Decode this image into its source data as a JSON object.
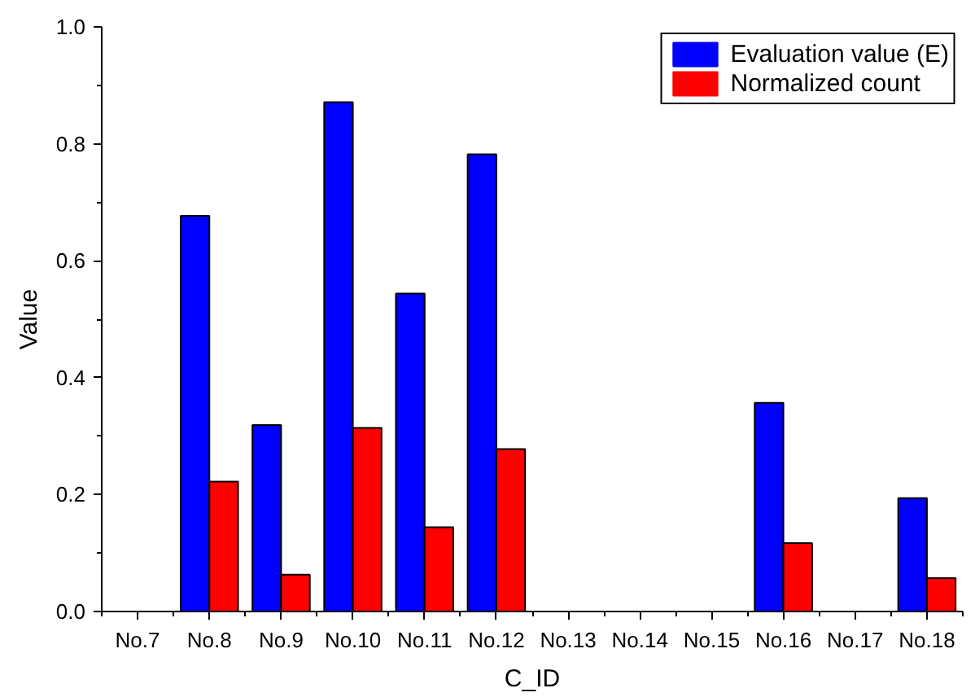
{
  "chart_data": {
    "type": "bar",
    "xlabel": "C_ID",
    "ylabel": "Value",
    "categories": [
      "No.7",
      "No.8",
      "No.9",
      "No.10",
      "No.11",
      "No.12",
      "No.13",
      "No.14",
      "No.15",
      "No.16",
      "No.17",
      "No.18"
    ],
    "series": [
      {
        "name": "Evaluation value (E)",
        "color": "#0000ff",
        "values": [
          0,
          0.677,
          0.319,
          0.871,
          0.544,
          0.782,
          0,
          0,
          0,
          0.357,
          0,
          0.194
        ]
      },
      {
        "name": "Normalized count",
        "color": "#ff0000",
        "values": [
          0,
          0.222,
          0.063,
          0.314,
          0.144,
          0.278,
          0,
          0,
          0,
          0.117,
          0,
          0.057
        ]
      }
    ],
    "ylim": [
      0,
      1.0
    ],
    "yticks": [
      {
        "value": 0,
        "label": "0.0"
      },
      {
        "value": 0.1,
        "label": null
      },
      {
        "value": 0.2,
        "label": "0.2"
      },
      {
        "value": 0.3,
        "label": null
      },
      {
        "value": 0.4,
        "label": "0.4"
      },
      {
        "value": 0.5,
        "label": null
      },
      {
        "value": 0.6,
        "label": "0.6"
      },
      {
        "value": 0.7,
        "label": null
      },
      {
        "value": 0.8,
        "label": "0.8"
      },
      {
        "value": 0.9,
        "label": null
      },
      {
        "value": 1.0,
        "label": "1.0"
      }
    ],
    "grid": false,
    "legend": "top right"
  }
}
